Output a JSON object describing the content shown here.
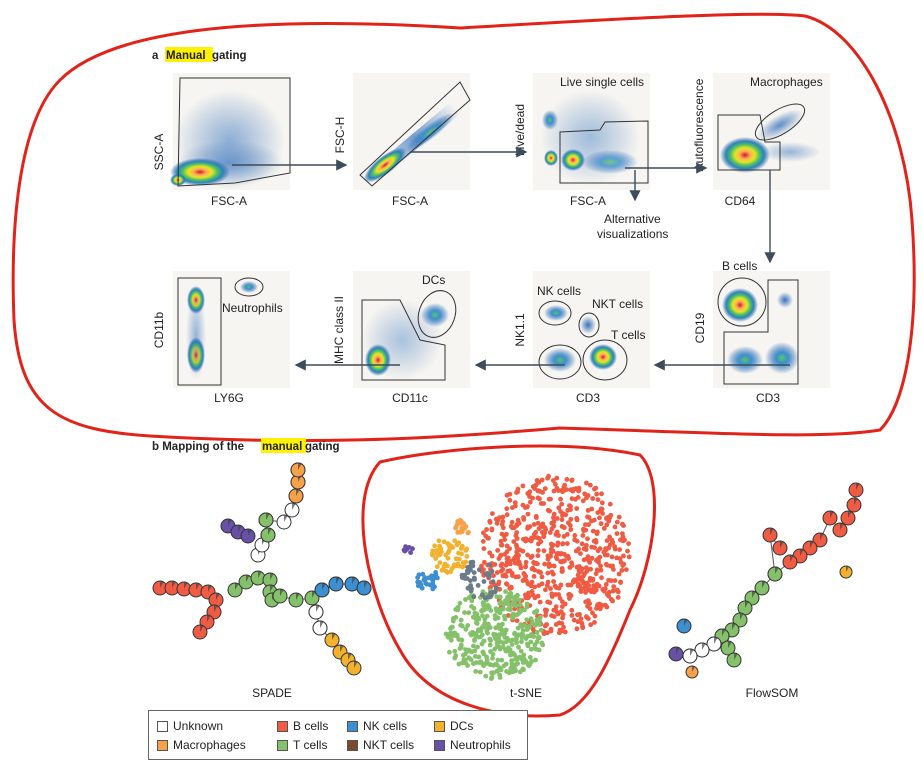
{
  "section_a": {
    "letter": "a",
    "highlight": "Manual",
    "rest": " gating"
  },
  "section_b": {
    "prefix": "b  Mapping of the ",
    "highlight": "manual",
    "suffix": " gating"
  },
  "plots": [
    {
      "id": "p1",
      "xlabel": "FSC-A",
      "ylabel": "SSC-A",
      "title": ""
    },
    {
      "id": "p2",
      "xlabel": "FSC-A",
      "ylabel": "FSC-H",
      "title": ""
    },
    {
      "id": "p3",
      "xlabel": "FSC-A",
      "ylabel": "Live/dead",
      "title": "Live single cells"
    },
    {
      "id": "p4",
      "xlabel": "CD64",
      "ylabel": "Autofluorescence",
      "title": "Macrophages"
    },
    {
      "id": "p5",
      "xlabel": "CD3",
      "ylabel": "CD19",
      "title": "B cells"
    },
    {
      "id": "p6",
      "xlabel": "CD3",
      "ylabel": "NK1.1",
      "title": ""
    },
    {
      "id": "p7",
      "xlabel": "CD11c",
      "ylabel": "MHC class II",
      "title": "DCs"
    },
    {
      "id": "p8",
      "xlabel": "LY6G",
      "ylabel": "CD11b",
      "title": ""
    }
  ],
  "gate_labels": {
    "nk_cells": "NK cells",
    "nkt_cells": "NKT cells",
    "t_cells": "T cells",
    "neutrophils": "Neutrophils"
  },
  "alt_vis": {
    "line1": "Alternative",
    "line2": "visualizations"
  },
  "methods": {
    "spade": "SPADE",
    "tsne": "t-SNE",
    "flowsom": "FlowSOM"
  },
  "legend": [
    {
      "label": "Unknown",
      "color": "#ffffff"
    },
    {
      "label": "Macrophages",
      "color": "#f7a24b"
    },
    {
      "label": "B cells",
      "color": "#ef5b43"
    },
    {
      "label": "T cells",
      "color": "#84c16a"
    },
    {
      "label": "NK cells",
      "color": "#3c8fd0"
    },
    {
      "label": "NKT cells",
      "color": "#7a4a2c"
    },
    {
      "label": "DCs",
      "color": "#f2b22e"
    },
    {
      "label": "Neutrophils",
      "color": "#6a4fa6"
    }
  ],
  "colors": {
    "annotation_red": "#e2231a",
    "arrow": "#3d4c5a",
    "highlight": "#fff200"
  }
}
